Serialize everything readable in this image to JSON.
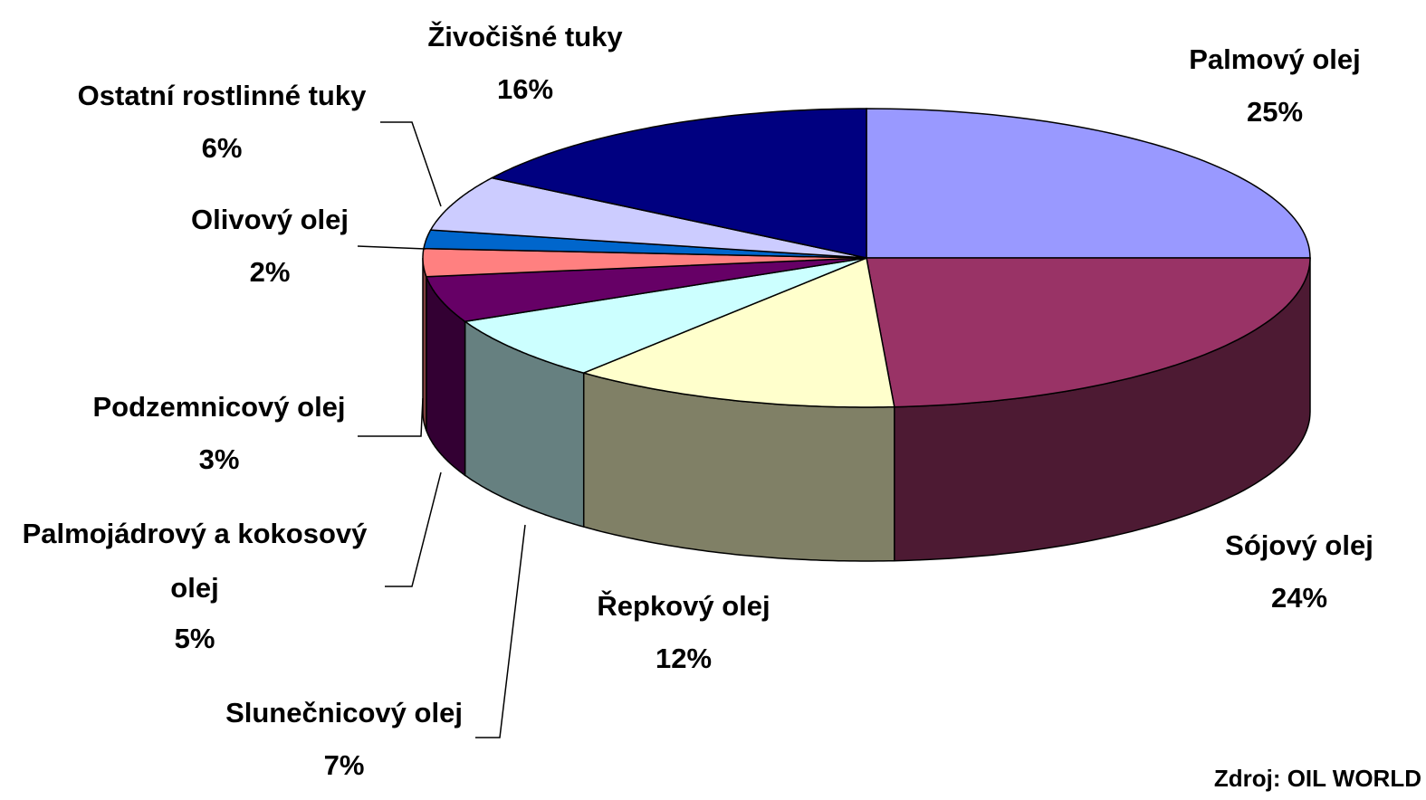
{
  "chart_data": {
    "type": "pie3d",
    "categories": [
      "Palmový olej",
      "Sójový olej",
      "Řepkový olej",
      "Slunečnicový olej",
      "Palmojádrový a kokosový olej",
      "Podzemnicový olej",
      "Olivový olej",
      "Ostatní rostlinné tuky",
      "Živočišné tuky"
    ],
    "values": [
      25,
      24,
      12,
      7,
      5,
      3,
      2,
      6,
      16
    ],
    "value_labels": [
      "25%",
      "24%",
      "12%",
      "7%",
      "5%",
      "3%",
      "2%",
      "6%",
      "16%"
    ],
    "colors": [
      "#9999ff",
      "#993366",
      "#ffffcc",
      "#ccffff",
      "#660066",
      "#ff8080",
      "#0066cc",
      "#ccccff",
      "#000080"
    ],
    "source": "Zdroj: OIL WORLD"
  }
}
